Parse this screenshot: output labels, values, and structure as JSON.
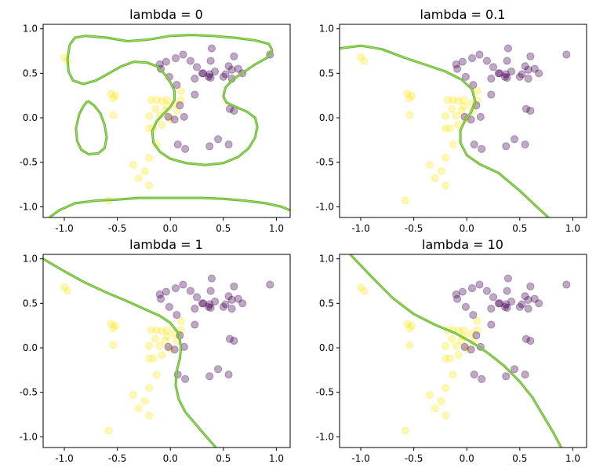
{
  "chart_data": [
    {
      "type": "scatter",
      "title": "lambda = 0",
      "xlim": [
        -1.2,
        1.13
      ],
      "ylim": [
        -1.12,
        1.05
      ],
      "xticks": [
        "-1.0",
        "-0.5",
        "0.0",
        "0.5",
        "1.0"
      ],
      "yticks": [
        "-1.0",
        "-0.5",
        "0.0",
        "0.5",
        "1.0"
      ],
      "boundary": [
        [
          [
            -0.95,
            0.82
          ],
          [
            -0.9,
            0.9
          ],
          [
            -0.8,
            0.92
          ],
          [
            -0.6,
            0.9
          ],
          [
            -0.4,
            0.86
          ],
          [
            -0.2,
            0.88
          ],
          [
            0.0,
            0.92
          ],
          [
            0.2,
            0.93
          ],
          [
            0.4,
            0.92
          ],
          [
            0.6,
            0.9
          ],
          [
            0.8,
            0.87
          ],
          [
            0.93,
            0.83
          ],
          [
            0.96,
            0.76
          ],
          [
            0.92,
            0.68
          ],
          [
            0.8,
            0.6
          ],
          [
            0.7,
            0.52
          ],
          [
            0.6,
            0.44
          ],
          [
            0.52,
            0.34
          ],
          [
            0.5,
            0.24
          ],
          [
            0.53,
            0.17
          ],
          [
            0.62,
            0.12
          ],
          [
            0.72,
            0.07
          ],
          [
            0.8,
            0.0
          ],
          [
            0.82,
            -0.1
          ],
          [
            0.8,
            -0.22
          ],
          [
            0.74,
            -0.34
          ],
          [
            0.64,
            -0.44
          ],
          [
            0.5,
            -0.51
          ],
          [
            0.33,
            -0.53
          ],
          [
            0.15,
            -0.51
          ],
          [
            0.0,
            -0.46
          ],
          [
            -0.1,
            -0.38
          ],
          [
            -0.16,
            -0.28
          ],
          [
            -0.17,
            -0.15
          ],
          [
            -0.13,
            -0.04
          ],
          [
            -0.06,
            0.05
          ],
          [
            0.0,
            0.12
          ],
          [
            0.04,
            0.2
          ],
          [
            0.04,
            0.3
          ],
          [
            0.0,
            0.4
          ],
          [
            -0.06,
            0.5
          ],
          [
            -0.13,
            0.58
          ],
          [
            -0.22,
            0.62
          ],
          [
            -0.34,
            0.63
          ],
          [
            -0.46,
            0.58
          ],
          [
            -0.58,
            0.5
          ],
          [
            -0.7,
            0.42
          ],
          [
            -0.82,
            0.38
          ],
          [
            -0.92,
            0.42
          ],
          [
            -0.96,
            0.52
          ],
          [
            -0.97,
            0.66
          ],
          [
            -0.95,
            0.82
          ]
        ],
        [
          [
            -0.78,
            0.19
          ],
          [
            -0.72,
            0.14
          ],
          [
            -0.66,
            0.05
          ],
          [
            -0.62,
            -0.08
          ],
          [
            -0.6,
            -0.22
          ],
          [
            -0.62,
            -0.34
          ],
          [
            -0.68,
            -0.4
          ],
          [
            -0.77,
            -0.41
          ],
          [
            -0.84,
            -0.36
          ],
          [
            -0.88,
            -0.26
          ],
          [
            -0.89,
            -0.12
          ],
          [
            -0.86,
            0.04
          ],
          [
            -0.82,
            0.13
          ],
          [
            -0.78,
            0.19
          ]
        ],
        [
          [
            -1.14,
            -1.12
          ],
          [
            -1.05,
            -1.04
          ],
          [
            -0.9,
            -0.96
          ],
          [
            -0.7,
            -0.93
          ],
          [
            -0.5,
            -0.92
          ],
          [
            -0.3,
            -0.9
          ],
          [
            -0.1,
            -0.9
          ],
          [
            0.1,
            -0.9
          ],
          [
            0.3,
            -0.9
          ],
          [
            0.5,
            -0.91
          ],
          [
            0.7,
            -0.93
          ],
          [
            0.9,
            -0.96
          ],
          [
            1.05,
            -1.0
          ],
          [
            1.13,
            -1.04
          ]
        ]
      ]
    },
    {
      "type": "scatter",
      "title": "lambda = 0.1",
      "xlim": [
        -1.2,
        1.13
      ],
      "ylim": [
        -1.12,
        1.05
      ],
      "xticks": [
        "-1.0",
        "-0.5",
        "0.0",
        "0.5",
        "1.0"
      ],
      "yticks": [
        "-1.0",
        "-0.5",
        "0.0",
        "0.5",
        "1.0"
      ],
      "boundary": [
        [
          [
            -1.2,
            0.78
          ],
          [
            -1.0,
            0.81
          ],
          [
            -0.8,
            0.77
          ],
          [
            -0.6,
            0.68
          ],
          [
            -0.4,
            0.6
          ],
          [
            -0.2,
            0.52
          ],
          [
            -0.05,
            0.43
          ],
          [
            0.05,
            0.32
          ],
          [
            0.08,
            0.18
          ],
          [
            0.04,
            0.06
          ],
          [
            -0.02,
            -0.04
          ],
          [
            -0.06,
            -0.14
          ],
          [
            -0.06,
            -0.28
          ],
          [
            0.0,
            -0.42
          ],
          [
            0.12,
            -0.52
          ],
          [
            0.3,
            -0.62
          ],
          [
            0.5,
            -0.82
          ],
          [
            0.66,
            -1.0
          ],
          [
            0.77,
            -1.12
          ]
        ]
      ]
    },
    {
      "type": "scatter",
      "title": "lambda = 1",
      "xlim": [
        -1.2,
        1.13
      ],
      "ylim": [
        -1.12,
        1.05
      ],
      "xticks": [
        "-1.0",
        "-0.5",
        "0.0",
        "0.5",
        "1.0"
      ],
      "yticks": [
        "-1.0",
        "-0.5",
        "0.0",
        "0.5",
        "1.0"
      ],
      "boundary": [
        [
          [
            -1.2,
            1.0
          ],
          [
            -1.0,
            0.86
          ],
          [
            -0.8,
            0.73
          ],
          [
            -0.6,
            0.62
          ],
          [
            -0.4,
            0.52
          ],
          [
            -0.25,
            0.44
          ],
          [
            -0.1,
            0.36
          ],
          [
            0.0,
            0.28
          ],
          [
            0.08,
            0.16
          ],
          [
            0.1,
            0.0
          ],
          [
            0.09,
            -0.12
          ],
          [
            0.06,
            -0.26
          ],
          [
            0.05,
            -0.42
          ],
          [
            0.08,
            -0.58
          ],
          [
            0.14,
            -0.72
          ],
          [
            0.24,
            -0.86
          ],
          [
            0.34,
            -1.0
          ],
          [
            0.43,
            -1.12
          ]
        ]
      ]
    },
    {
      "type": "scatter",
      "title": "lambda = 10",
      "xlim": [
        -1.2,
        1.13
      ],
      "ylim": [
        -1.12,
        1.05
      ],
      "xticks": [
        "-1.0",
        "-0.5",
        "0.0",
        "0.5",
        "1.0"
      ],
      "yticks": [
        "-1.0",
        "-0.5",
        "0.0",
        "0.5",
        "1.0"
      ],
      "boundary": [
        [
          [
            -1.1,
            1.05
          ],
          [
            -0.9,
            0.8
          ],
          [
            -0.7,
            0.56
          ],
          [
            -0.5,
            0.38
          ],
          [
            -0.3,
            0.26
          ],
          [
            -0.1,
            0.16
          ],
          [
            0.05,
            0.06
          ],
          [
            0.2,
            -0.06
          ],
          [
            0.35,
            -0.2
          ],
          [
            0.5,
            -0.38
          ],
          [
            0.62,
            -0.56
          ],
          [
            0.72,
            -0.76
          ],
          [
            0.82,
            -0.96
          ],
          [
            0.89,
            -1.12
          ]
        ]
      ]
    }
  ],
  "points": {
    "class0_color": "#440154",
    "class1_color": "#fde725",
    "class0": [
      [
        -0.1,
        0.6
      ],
      [
        -0.09,
        0.55
      ],
      [
        -0.04,
        0.63
      ],
      [
        0.05,
        0.67
      ],
      [
        0.12,
        0.71
      ],
      [
        0.19,
        0.64
      ],
      [
        0.25,
        0.57
      ],
      [
        0.31,
        0.5
      ],
      [
        0.37,
        0.49
      ],
      [
        0.36,
        0.46
      ],
      [
        0.38,
        0.45
      ],
      [
        0.42,
        0.52
      ],
      [
        0.5,
        0.46
      ],
      [
        0.52,
        0.49
      ],
      [
        0.55,
        0.58
      ],
      [
        0.58,
        0.54
      ],
      [
        0.58,
        0.44
      ],
      [
        0.6,
        0.69
      ],
      [
        0.64,
        0.55
      ],
      [
        0.68,
        0.5
      ],
      [
        0.94,
        0.71
      ],
      [
        -0.01,
        0.46
      ],
      [
        0.06,
        0.37
      ],
      [
        0.23,
        0.26
      ],
      [
        0.39,
        0.78
      ],
      [
        0.38,
        0.64
      ],
      [
        0.23,
        0.44
      ],
      [
        0.3,
        0.5
      ],
      [
        0.56,
        0.1
      ],
      [
        0.6,
        0.08
      ],
      [
        0.09,
        0.14
      ],
      [
        0.13,
        0.01
      ],
      [
        -0.02,
        0.01
      ],
      [
        0.04,
        -0.02
      ],
      [
        0.37,
        -0.32
      ],
      [
        0.45,
        -0.24
      ],
      [
        0.55,
        -0.3
      ],
      [
        0.07,
        -0.3
      ],
      [
        0.14,
        -0.35
      ]
    ],
    "class1": [
      [
        -1.0,
        0.68
      ],
      [
        -0.97,
        0.64
      ],
      [
        -0.56,
        0.27
      ],
      [
        -0.52,
        0.25
      ],
      [
        -0.54,
        0.22
      ],
      [
        -0.54,
        0.03
      ],
      [
        -0.18,
        0.2
      ],
      [
        -0.13,
        0.2
      ],
      [
        -0.08,
        0.19
      ],
      [
        -0.03,
        0.2
      ],
      [
        0.04,
        0.16
      ],
      [
        0.1,
        0.2
      ],
      [
        -0.14,
        0.1
      ],
      [
        -0.05,
        0.08
      ],
      [
        0.06,
        0.08
      ],
      [
        0.0,
        -0.01
      ],
      [
        -0.1,
        0.02
      ],
      [
        -0.08,
        -0.08
      ],
      [
        -0.2,
        -0.12
      ],
      [
        -0.16,
        -0.12
      ],
      [
        -0.2,
        0.02
      ],
      [
        -0.13,
        -0.3
      ],
      [
        -0.2,
        -0.45
      ],
      [
        -0.24,
        -0.6
      ],
      [
        -0.3,
        -0.68
      ],
      [
        -0.35,
        -0.53
      ],
      [
        -0.2,
        -0.76
      ],
      [
        -0.58,
        -0.93
      ],
      [
        0.1,
        0.3
      ],
      [
        -0.03,
        0.13
      ]
    ]
  }
}
